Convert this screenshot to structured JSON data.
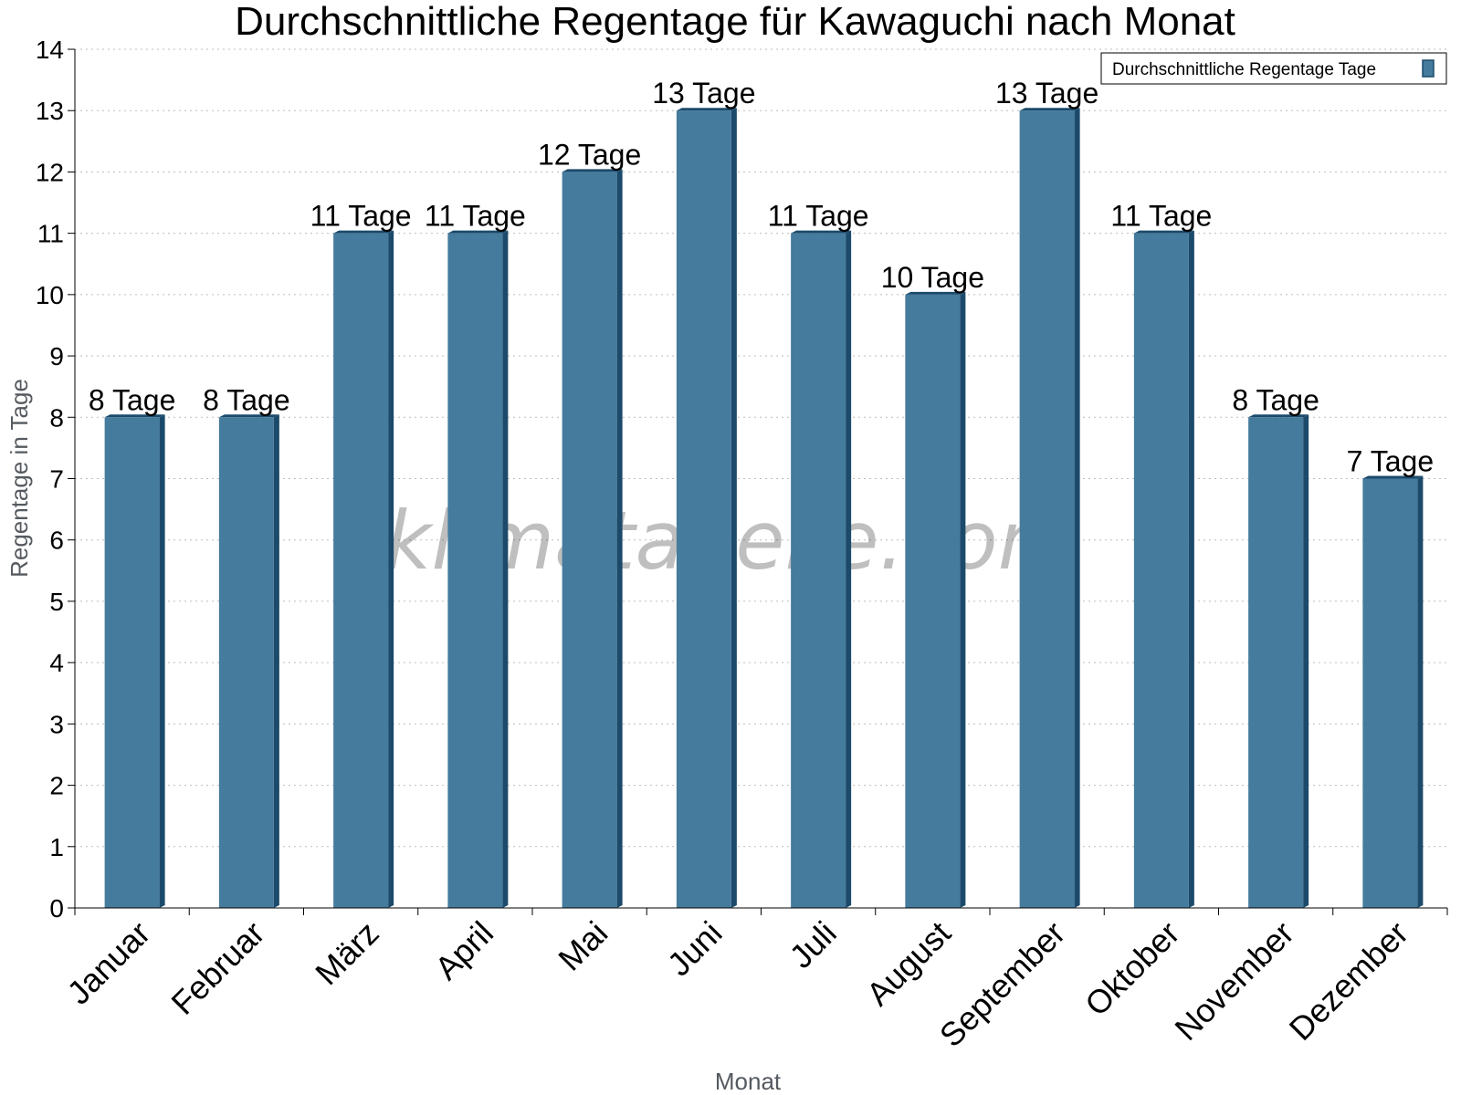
{
  "chart_data": {
    "type": "bar",
    "title": "Durchschnittliche Regentage für Kawaguchi nach Monat",
    "xlabel": "Monat",
    "ylabel": "Regentage in Tage",
    "categories": [
      "Januar",
      "Februar",
      "März",
      "April",
      "Mai",
      "Juni",
      "Juli",
      "August",
      "September",
      "Oktober",
      "November",
      "Dezember"
    ],
    "series": [
      {
        "name": "Durchschnittliche Regentage Tage",
        "values": [
          8,
          8,
          11,
          11,
          12,
          13,
          11,
          10,
          13,
          11,
          8,
          7
        ],
        "labels": [
          "8 Tage",
          "8 Tage",
          "11 Tage",
          "11 Tage",
          "12 Tage",
          "13 Tage",
          "11 Tage",
          "10 Tage",
          "13 Tage",
          "11 Tage",
          "8 Tage",
          "7 Tage"
        ],
        "color": "#457b9d"
      }
    ],
    "ylim": [
      0,
      14
    ],
    "yticks": [
      0,
      1,
      2,
      3,
      4,
      5,
      6,
      7,
      8,
      9,
      10,
      11,
      12,
      13,
      14
    ],
    "grid": true,
    "legend_position": "top-right",
    "watermark": "klimatabelle.com"
  }
}
